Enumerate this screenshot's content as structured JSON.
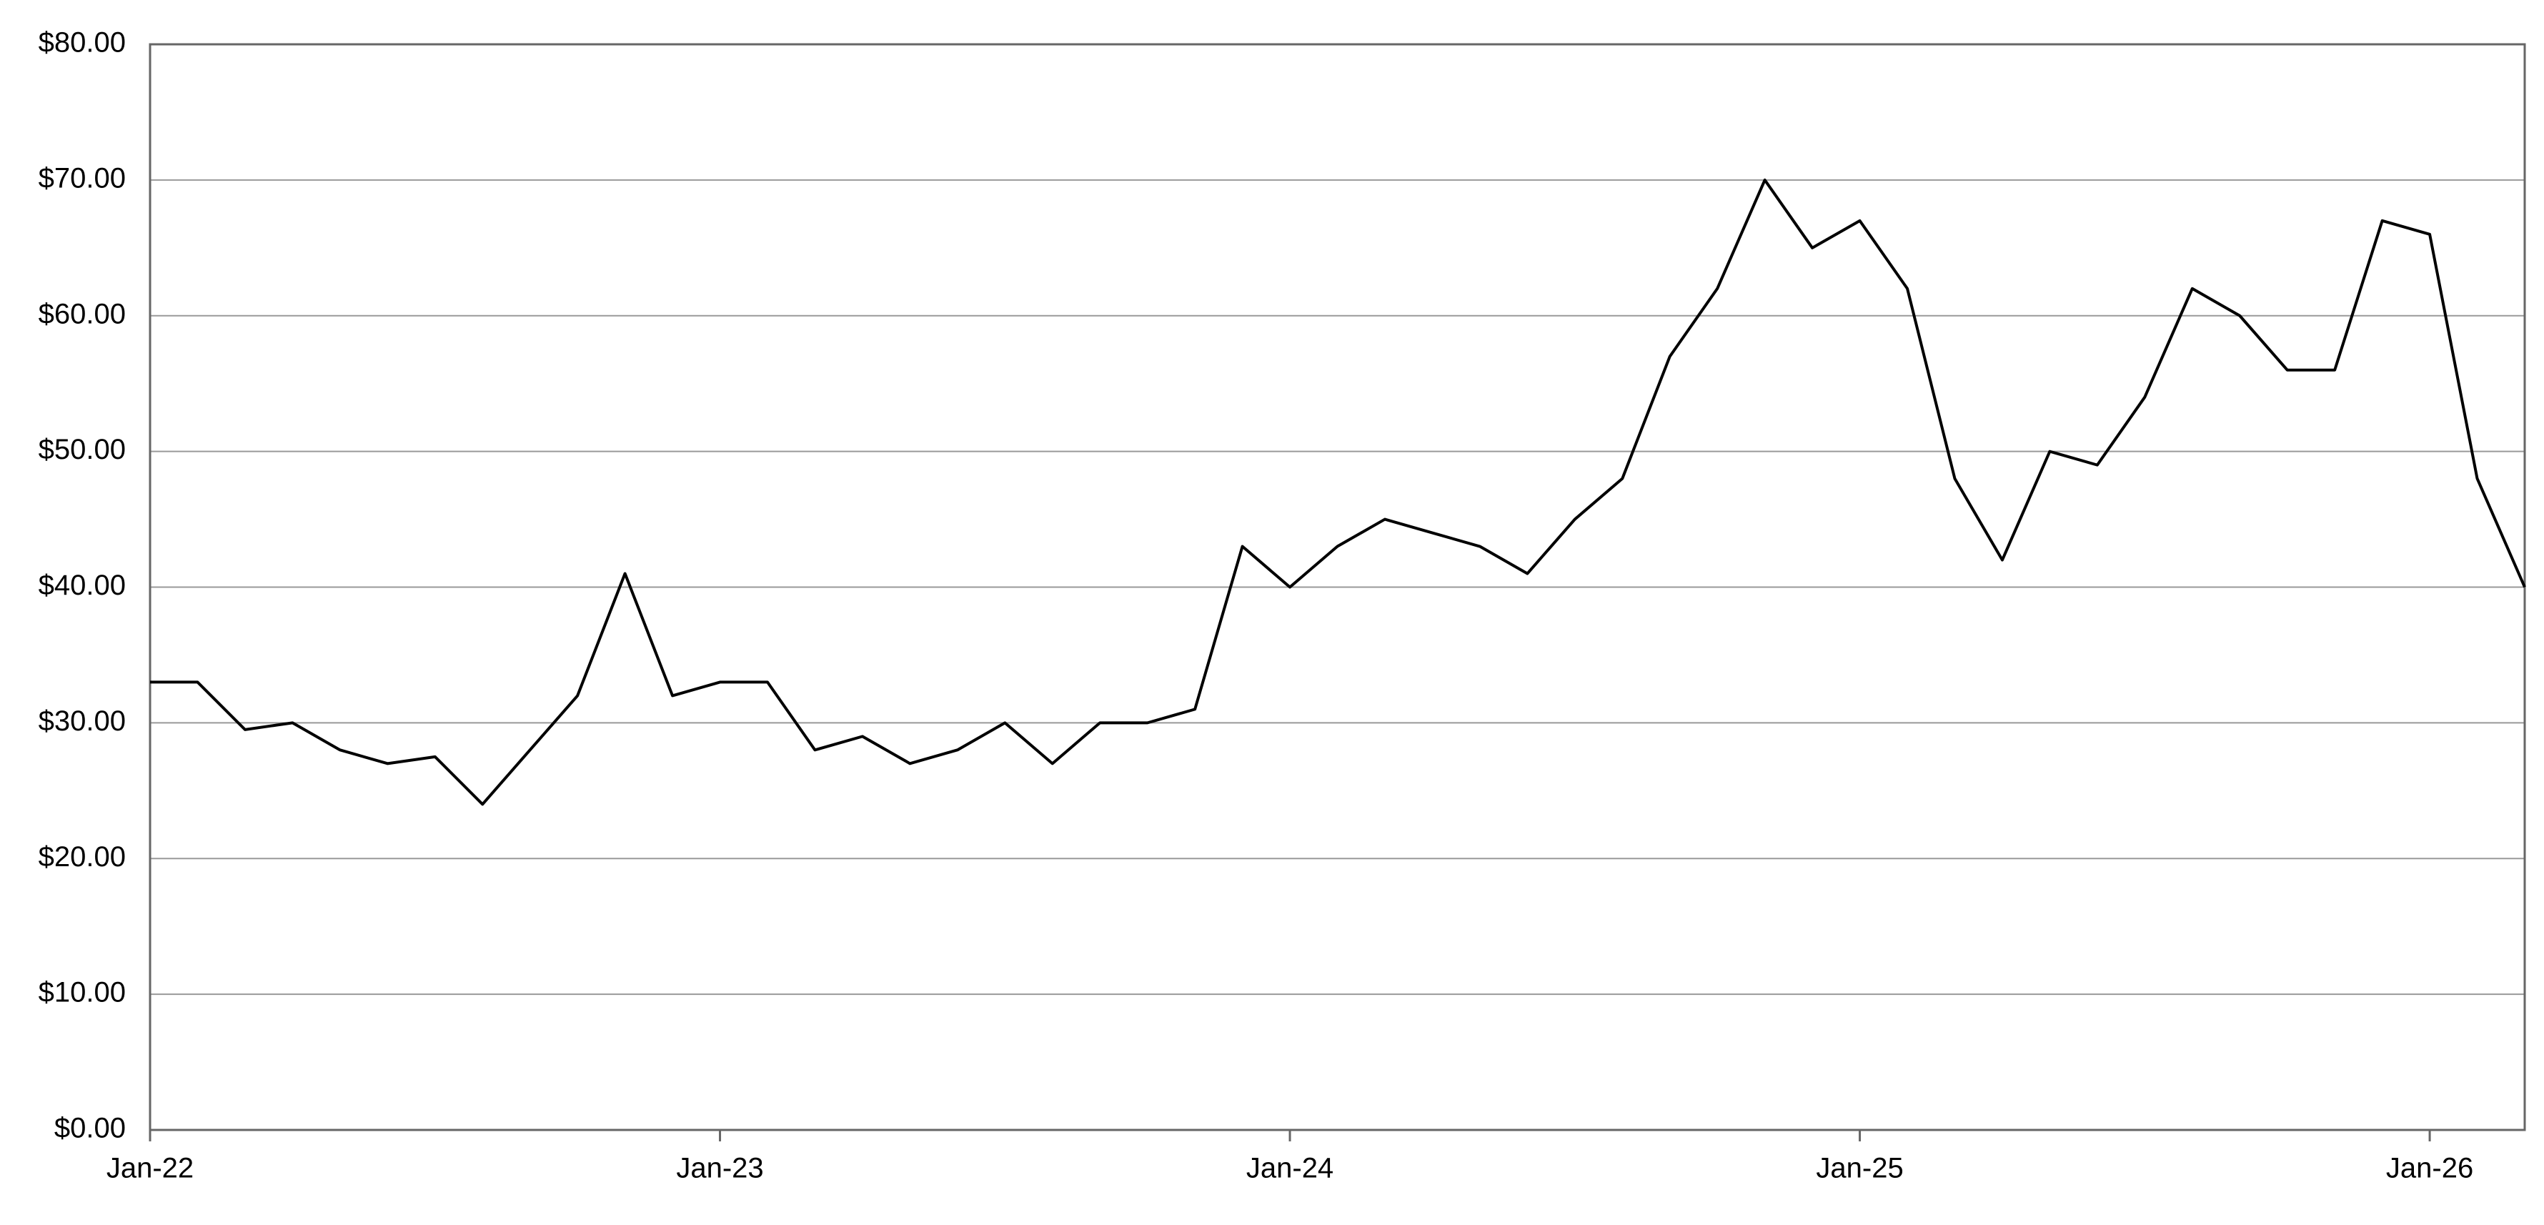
{
  "chart_data": {
    "type": "line",
    "x": [
      "2022-01",
      "2022-02",
      "2022-03",
      "2022-04",
      "2022-05",
      "2022-06",
      "2022-07",
      "2022-08",
      "2022-09",
      "2022-10",
      "2022-11",
      "2022-12",
      "2023-01",
      "2023-02",
      "2023-03",
      "2023-04",
      "2023-05",
      "2023-06",
      "2023-07",
      "2023-08",
      "2023-09",
      "2023-10",
      "2023-11",
      "2023-12",
      "2024-01",
      "2024-02",
      "2024-03",
      "2024-04",
      "2024-05",
      "2024-06",
      "2024-07",
      "2024-08",
      "2024-09",
      "2024-10",
      "2024-11",
      "2024-12",
      "2025-01",
      "2025-02",
      "2025-03",
      "2025-04",
      "2025-05",
      "2025-06",
      "2025-07",
      "2025-08",
      "2025-09",
      "2025-10",
      "2025-11",
      "2025-12",
      "2026-01",
      "2026-02",
      "2026-03"
    ],
    "series": [
      {
        "color": "#000000",
        "values": [
          33,
          33,
          29.5,
          30,
          28,
          27,
          27.5,
          24,
          28,
          32,
          41,
          32,
          33,
          33,
          28,
          29,
          27,
          28,
          30,
          27,
          30,
          30,
          31,
          43,
          40,
          43,
          45,
          44,
          43,
          41,
          45,
          48,
          57,
          62,
          70,
          65,
          67,
          62,
          48,
          42,
          50,
          49,
          54,
          62,
          60,
          56,
          56,
          67,
          66,
          48,
          40
        ]
      }
    ],
    "xlim": [
      "2022-01",
      "2026-03"
    ],
    "xticks": [
      {
        "value": "2022-01",
        "label": "Jan-22"
      },
      {
        "value": "2023-01",
        "label": "Jan-23"
      },
      {
        "value": "2024-01",
        "label": "Jan-24"
      },
      {
        "value": "2025-01",
        "label": "Jan-25"
      },
      {
        "value": "2026-01",
        "label": "Jan-26"
      }
    ],
    "ylim": [
      0,
      80
    ],
    "yticks": [
      {
        "value": 0,
        "label": "$0.00"
      },
      {
        "value": 10,
        "label": "$10.00"
      },
      {
        "value": 20,
        "label": "$20.00"
      },
      {
        "value": 30,
        "label": "$30.00"
      },
      {
        "value": 40,
        "label": "$40.00"
      },
      {
        "value": 50,
        "label": "$50.00"
      },
      {
        "value": 60,
        "label": "$60.00"
      },
      {
        "value": 70,
        "label": "$70.00"
      },
      {
        "value": 80,
        "label": "$80.00"
      }
    ],
    "grid": true
  }
}
